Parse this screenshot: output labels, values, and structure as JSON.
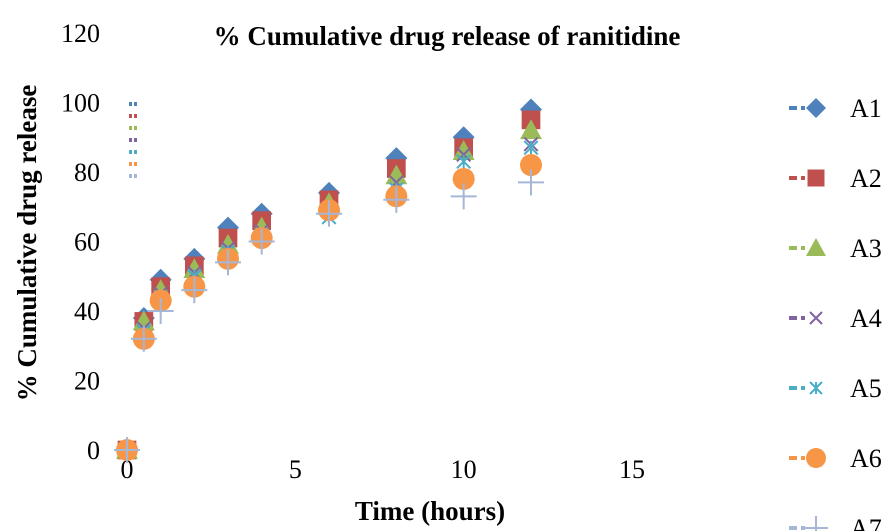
{
  "chart_data": {
    "type": "scatter",
    "title": "% Cumulative drug release of ranitidine",
    "xlabel": "Time (hours)",
    "ylabel": "% Cumulative drug release",
    "xlim": [
      0,
      15
    ],
    "ylim": [
      0,
      120
    ],
    "xticks": [
      "0",
      "5",
      "10",
      "15"
    ],
    "yticks": [
      "0",
      "20",
      "40",
      "60",
      "80",
      "100",
      "120"
    ],
    "grid": false,
    "legend_position": "right",
    "x": [
      0,
      0.5,
      1,
      2,
      3,
      4,
      6,
      8,
      10,
      12
    ],
    "series": [
      {
        "name": "A1",
        "color": "#4f81bd",
        "marker": "diamond",
        "values": [
          0,
          38,
          49,
          55,
          64,
          68,
          74,
          84,
          90,
          98
        ]
      },
      {
        "name": "A2",
        "color": "#c0504d",
        "marker": "square",
        "values": [
          0,
          37,
          47,
          53,
          61,
          66,
          72,
          81,
          87,
          95
        ]
      },
      {
        "name": "A3",
        "color": "#9bbb59",
        "marker": "triangle",
        "values": [
          0,
          37,
          46,
          52,
          59,
          64,
          71,
          79,
          86,
          92
        ]
      },
      {
        "name": "A4",
        "color": "#8064a2",
        "marker": "x",
        "values": [
          0,
          35,
          45,
          51,
          58,
          63,
          69,
          77,
          85,
          88
        ]
      },
      {
        "name": "A5",
        "color": "#4bacc6",
        "marker": "star",
        "values": [
          0,
          34,
          44,
          50,
          57,
          62,
          67,
          75,
          83,
          87
        ]
      },
      {
        "name": "A6",
        "color": "#f79646",
        "marker": "circle",
        "values": [
          0,
          32,
          43,
          47,
          55,
          61,
          69,
          73,
          78,
          82
        ]
      },
      {
        "name": "A7",
        "color": "#a5b6d6",
        "marker": "plus",
        "values": [
          0,
          32,
          40,
          46,
          54,
          60,
          68,
          72,
          73,
          77
        ]
      }
    ]
  }
}
